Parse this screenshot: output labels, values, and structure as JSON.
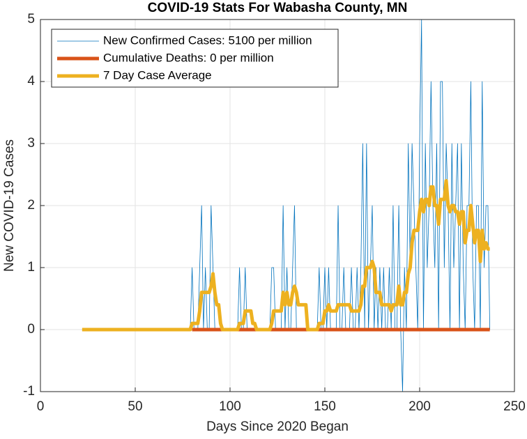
{
  "chart_data": {
    "type": "line",
    "title": "COVID-19 Stats For Wabasha County, MN",
    "x_label": "Days Since 2020 Began",
    "y_label": "New COVID-19 Cases",
    "xlim": [
      0,
      250
    ],
    "xticks": [
      0,
      50,
      100,
      150,
      200,
      250
    ],
    "ylim": [
      -1,
      5
    ],
    "yticks": [
      -1,
      0,
      1,
      2,
      3,
      4,
      5
    ],
    "grid": true,
    "legend": "northwest",
    "x": [
      22,
      23,
      24,
      25,
      26,
      27,
      28,
      29,
      30,
      31,
      32,
      33,
      34,
      35,
      36,
      37,
      38,
      39,
      40,
      41,
      42,
      43,
      44,
      45,
      46,
      47,
      48,
      49,
      50,
      51,
      52,
      53,
      54,
      55,
      56,
      57,
      58,
      59,
      60,
      61,
      62,
      63,
      64,
      65,
      66,
      67,
      68,
      69,
      70,
      71,
      72,
      73,
      74,
      75,
      76,
      77,
      78,
      79,
      80,
      81,
      82,
      83,
      84,
      85,
      86,
      87,
      88,
      89,
      90,
      91,
      92,
      93,
      94,
      95,
      96,
      97,
      98,
      99,
      100,
      101,
      102,
      103,
      104,
      105,
      106,
      107,
      108,
      109,
      110,
      111,
      112,
      113,
      114,
      115,
      116,
      117,
      118,
      119,
      120,
      121,
      122,
      123,
      124,
      125,
      126,
      127,
      128,
      129,
      130,
      131,
      132,
      133,
      134,
      135,
      136,
      137,
      138,
      139,
      140,
      141,
      142,
      143,
      144,
      145,
      146,
      147,
      148,
      149,
      150,
      151,
      152,
      153,
      154,
      155,
      156,
      157,
      158,
      159,
      160,
      161,
      162,
      163,
      164,
      165,
      166,
      167,
      168,
      169,
      170,
      171,
      172,
      173,
      174,
      175,
      176,
      177,
      178,
      179,
      180,
      181,
      182,
      183,
      184,
      185,
      186,
      187,
      188,
      189,
      190,
      191,
      192,
      193,
      194,
      195,
      196,
      197,
      198,
      199,
      200,
      201,
      202,
      203,
      204,
      205,
      206,
      207,
      208,
      209,
      210,
      211,
      212,
      213,
      214,
      215,
      216,
      217,
      218,
      219,
      220,
      221,
      222,
      223,
      224,
      225,
      226,
      227,
      228,
      229,
      230,
      231,
      232,
      233,
      234,
      235,
      236,
      237
    ],
    "series": [
      {
        "name": "New Confirmed Cases: 5100 per million",
        "color": "#0072bd",
        "width": 0.8,
        "values": [
          0,
          0,
          0,
          0,
          0,
          0,
          0,
          0,
          0,
          0,
          0,
          0,
          0,
          0,
          0,
          0,
          0,
          0,
          0,
          0,
          0,
          0,
          0,
          0,
          0,
          0,
          0,
          0,
          0,
          0,
          0,
          0,
          0,
          0,
          0,
          0,
          0,
          0,
          0,
          0,
          0,
          0,
          0,
          0,
          0,
          0,
          0,
          0,
          0,
          0,
          0,
          0,
          0,
          0,
          0,
          0,
          0,
          0,
          1,
          0,
          0,
          0,
          1,
          2,
          0,
          1,
          0,
          0,
          2,
          1,
          0,
          0,
          0,
          0,
          0,
          0,
          0,
          0,
          0,
          0,
          0,
          0,
          0,
          1,
          0,
          0,
          1,
          0,
          0,
          0,
          0,
          0,
          0,
          0,
          0,
          0,
          0,
          0,
          0,
          0,
          1,
          1,
          0,
          0,
          0,
          0,
          2,
          0,
          1,
          0,
          0,
          1,
          2,
          0,
          0,
          0,
          0,
          0,
          0,
          0,
          0,
          0,
          0,
          0,
          0,
          1,
          0,
          0,
          1,
          0,
          1,
          0,
          0,
          0,
          0,
          2,
          0,
          0,
          1,
          0,
          0,
          0,
          1,
          0,
          0,
          1,
          0,
          1,
          3,
          0,
          3,
          0,
          1,
          2,
          0,
          1,
          0,
          1,
          0,
          1,
          0,
          0,
          1,
          0,
          2,
          0,
          0,
          2,
          0,
          -1,
          1,
          0,
          3,
          1,
          3,
          2,
          1,
          0,
          3,
          5,
          0,
          3,
          1,
          2,
          4,
          2,
          1,
          3,
          0,
          4,
          4,
          1,
          3,
          2,
          0,
          3,
          1,
          2,
          3,
          0,
          3,
          1,
          0,
          2,
          2,
          4,
          1,
          0,
          2,
          2,
          0,
          4,
          1,
          2,
          2,
          0
        ]
      },
      {
        "name": "Cumulative Deaths: 0 per million",
        "color": "#d95319",
        "width": 5,
        "values": [
          null,
          null,
          null,
          null,
          null,
          null,
          null,
          null,
          null,
          null,
          null,
          null,
          null,
          null,
          null,
          null,
          null,
          null,
          null,
          null,
          null,
          null,
          null,
          null,
          null,
          null,
          null,
          null,
          null,
          null,
          null,
          null,
          null,
          null,
          null,
          null,
          null,
          null,
          null,
          null,
          null,
          null,
          null,
          null,
          null,
          null,
          null,
          null,
          null,
          null,
          null,
          null,
          null,
          null,
          null,
          null,
          null,
          null,
          0,
          0,
          0,
          0,
          0,
          0,
          0,
          0,
          0,
          0,
          0,
          0,
          0,
          0,
          0,
          0,
          0,
          0,
          0,
          0,
          0,
          0,
          0,
          0,
          0,
          0,
          0,
          0,
          0,
          0,
          0,
          0,
          0,
          0,
          0,
          0,
          0,
          0,
          0,
          0,
          0,
          0,
          0,
          0,
          0,
          0,
          0,
          0,
          0,
          0,
          0,
          0,
          0,
          0,
          0,
          0,
          0,
          0,
          0,
          0,
          0,
          0,
          0,
          0,
          0,
          0,
          0,
          0,
          0,
          0,
          0,
          0,
          0,
          0,
          0,
          0,
          0,
          0,
          0,
          0,
          0,
          0,
          0,
          0,
          0,
          0,
          0,
          0,
          0,
          0,
          0,
          0,
          0,
          0,
          0,
          0,
          0,
          0,
          0,
          0,
          0,
          0,
          0,
          0,
          0,
          0,
          0,
          0,
          0,
          0,
          0,
          0,
          0,
          0,
          0,
          0,
          0,
          0,
          0,
          0,
          0,
          0,
          0,
          0,
          0,
          0,
          0,
          0,
          0,
          0,
          0,
          0,
          0,
          0,
          0,
          0,
          0,
          0,
          0,
          0,
          0,
          0,
          0,
          0,
          0,
          0,
          0,
          0,
          0,
          0,
          0,
          0,
          0,
          0,
          0,
          0,
          0,
          0
        ]
      },
      {
        "name": "7 Day Case Average",
        "color": "#edb120",
        "width": 5,
        "values": [
          0,
          0,
          0,
          0,
          0,
          0,
          0,
          0,
          0,
          0,
          0,
          0,
          0,
          0,
          0,
          0,
          0,
          0,
          0,
          0,
          0,
          0,
          0,
          0,
          0,
          0,
          0,
          0,
          0,
          0,
          0,
          0,
          0,
          0,
          0,
          0,
          0,
          0,
          0,
          0,
          0,
          0,
          0,
          0,
          0,
          0,
          0,
          0,
          0,
          0,
          0,
          0,
          0,
          0,
          0,
          0,
          0,
          0,
          0.1,
          0.1,
          0.1,
          0.1,
          0.3,
          0.6,
          0.6,
          0.6,
          0.6,
          0.6,
          0.7,
          0.9,
          0.6,
          0.4,
          0.4,
          0.1,
          0,
          0,
          0,
          0,
          0,
          0,
          0,
          0,
          0,
          0.1,
          0.1,
          0.1,
          0.3,
          0.3,
          0.3,
          0.3,
          0.1,
          0.1,
          0,
          0,
          0,
          0,
          0,
          0,
          0,
          0,
          0.1,
          0.3,
          0.3,
          0.3,
          0.3,
          0.3,
          0.6,
          0.4,
          0.6,
          0.4,
          0.4,
          0.6,
          0.7,
          0.6,
          0.4,
          0.4,
          0.4,
          0.4,
          0.4,
          0,
          0,
          0,
          0,
          0,
          0,
          0.1,
          0.1,
          0.1,
          0.3,
          0.3,
          0.4,
          0.3,
          0.3,
          0.3,
          0.3,
          0.4,
          0.4,
          0.4,
          0.4,
          0.4,
          0.4,
          0.4,
          0.3,
          0.3,
          0.3,
          0.3,
          0.3,
          0.4,
          0.7,
          0.7,
          1,
          1,
          1,
          1.1,
          1,
          0.6,
          0.6,
          0.6,
          0.4,
          0.4,
          0.4,
          0.4,
          0.4,
          0.3,
          0.4,
          0.4,
          0.4,
          0.7,
          0.4,
          0.4,
          0.6,
          0.6,
          0.9,
          1,
          1.4,
          1.6,
          1.6,
          1.6,
          1.9,
          2.1,
          1.9,
          2.1,
          2.1,
          2,
          2.3,
          2.3,
          2,
          2,
          1.7,
          2.1,
          2.1,
          2.1,
          2.4,
          2,
          1.9,
          2,
          2,
          1.9,
          1.9,
          1.7,
          1.9,
          1.9,
          1.4,
          1.6,
          1.6,
          2,
          1.7,
          1.4,
          1.6,
          1.6,
          1.1,
          1.6,
          1.3,
          1.4,
          1.3,
          1.3
        ]
      }
    ]
  }
}
